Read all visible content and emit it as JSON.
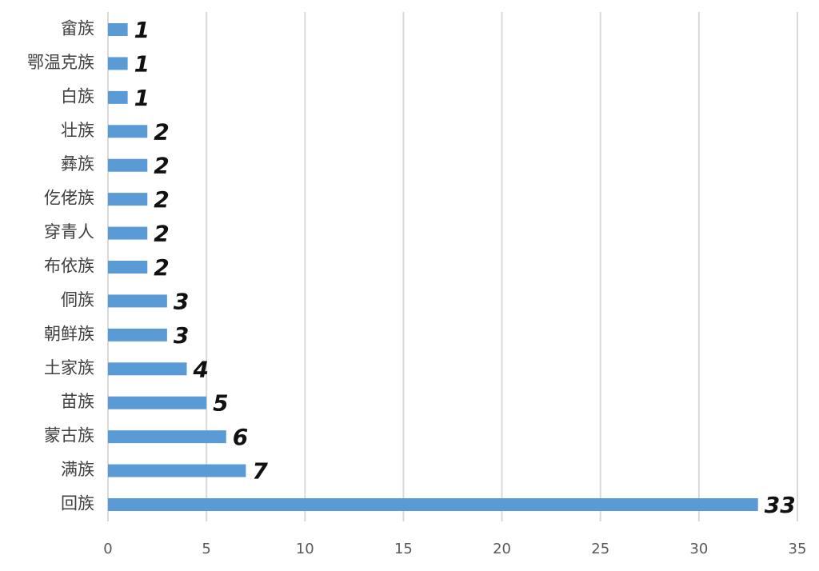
{
  "chart_data": {
    "type": "bar",
    "orientation": "horizontal",
    "categories": [
      "畲族",
      "鄂温克族",
      "白族",
      "壮族",
      "彝族",
      "仡佬族",
      "穿青人",
      "布依族",
      "侗族",
      "朝鲜族",
      "土家族",
      "苗族",
      "蒙古族",
      "满族",
      "回族"
    ],
    "values": [
      1,
      1,
      1,
      2,
      2,
      2,
      2,
      2,
      3,
      3,
      4,
      5,
      6,
      7,
      33
    ],
    "color": "#5b9bd5",
    "xlim": [
      0,
      35
    ],
    "xticks": [
      0,
      5,
      10,
      15,
      20,
      25,
      30,
      35
    ],
    "grid": true
  }
}
